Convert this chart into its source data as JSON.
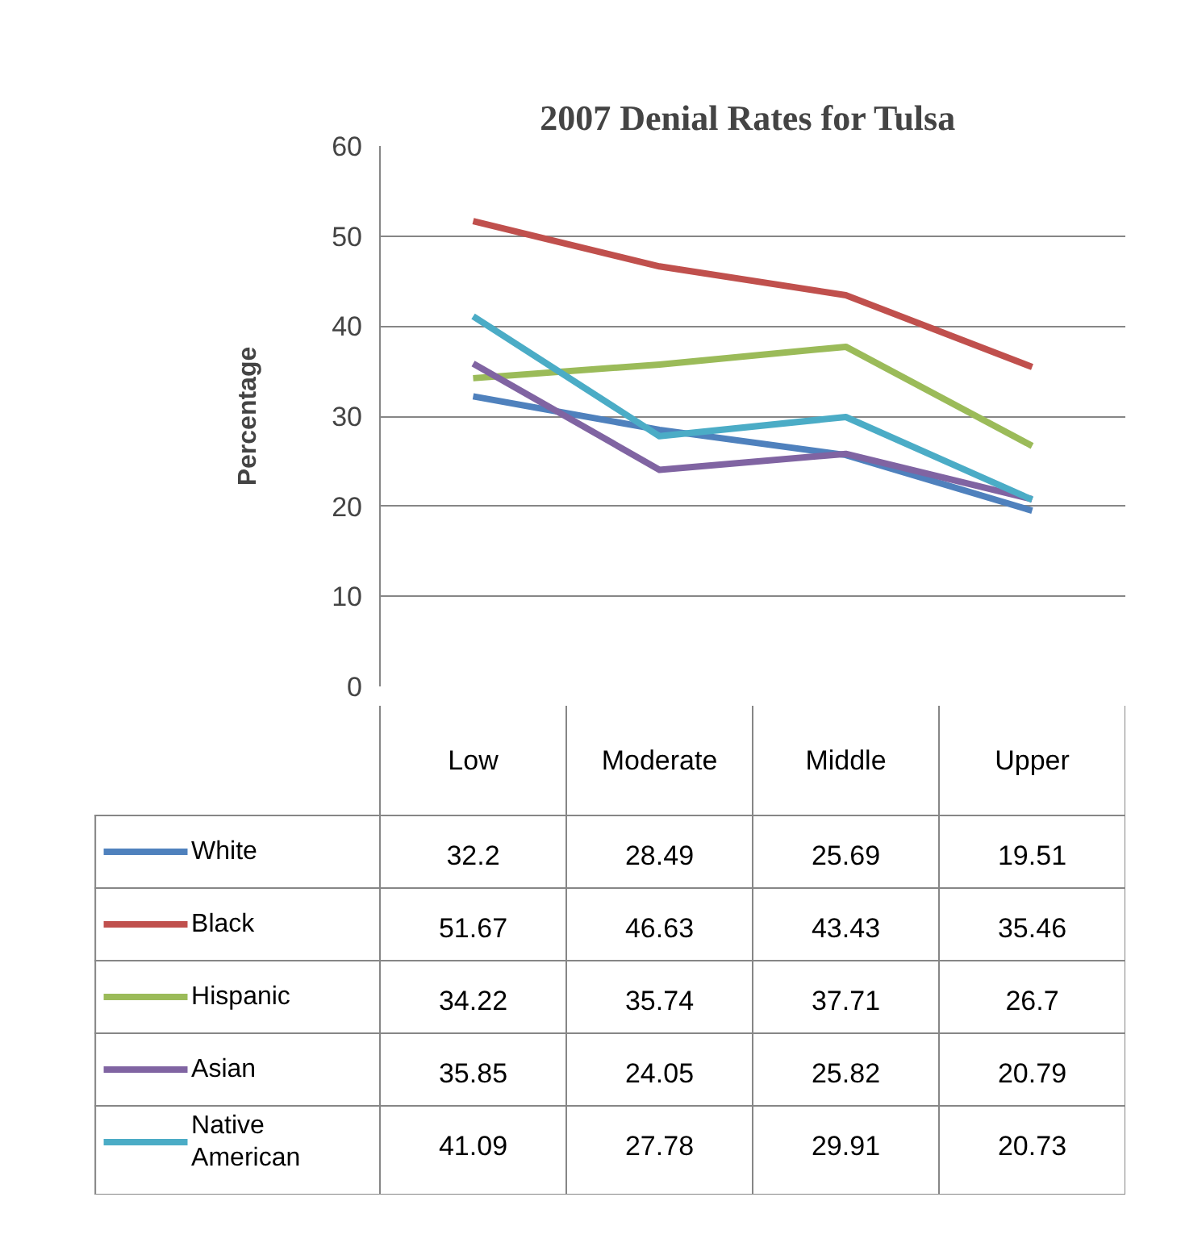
{
  "chart_data": {
    "type": "line",
    "title": "2007  Denial Rates for Tulsa",
    "ylabel": "Percentage",
    "categories": [
      "Low",
      "Moderate",
      "Middle",
      "Upper"
    ],
    "series": [
      {
        "name": "White",
        "color": "#4f81bd",
        "values": [
          32.2,
          28.49,
          25.69,
          19.51
        ]
      },
      {
        "name": "Black",
        "color": "#c0504d",
        "values": [
          51.67,
          46.63,
          43.43,
          35.46
        ]
      },
      {
        "name": "Hispanic",
        "color": "#9bbb59",
        "values": [
          34.22,
          35.74,
          37.71,
          26.7
        ]
      },
      {
        "name": "Asian",
        "color": "#8064a2",
        "values": [
          35.85,
          24.05,
          25.82,
          20.79
        ]
      },
      {
        "name": "Native American",
        "color": "#4bacc6",
        "values": [
          41.09,
          27.78,
          29.91,
          20.73
        ]
      }
    ],
    "ylim": [
      0,
      60
    ],
    "yticks": [
      0,
      10,
      20,
      30,
      40,
      50,
      60
    ],
    "grid": "y",
    "legend": "bottom",
    "data_labels": true,
    "line_style": "solid",
    "marker": "none"
  }
}
